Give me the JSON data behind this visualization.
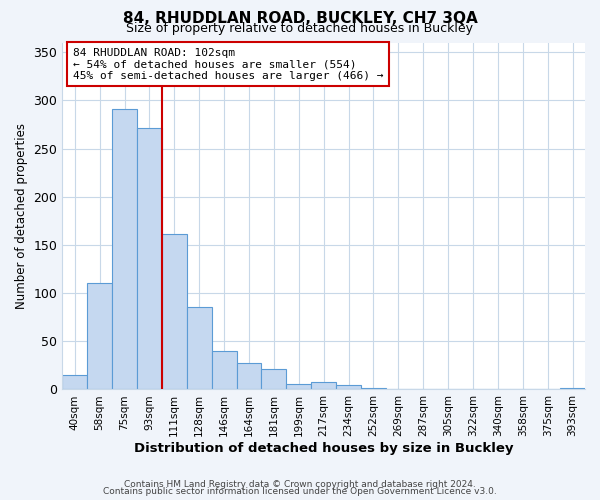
{
  "title": "84, RHUDDLAN ROAD, BUCKLEY, CH7 3QA",
  "subtitle": "Size of property relative to detached houses in Buckley",
  "xlabel": "Distribution of detached houses by size in Buckley",
  "ylabel": "Number of detached properties",
  "bar_labels": [
    "40sqm",
    "58sqm",
    "75sqm",
    "93sqm",
    "111sqm",
    "128sqm",
    "146sqm",
    "164sqm",
    "181sqm",
    "199sqm",
    "217sqm",
    "234sqm",
    "252sqm",
    "269sqm",
    "287sqm",
    "305sqm",
    "322sqm",
    "340sqm",
    "358sqm",
    "375sqm",
    "393sqm"
  ],
  "bar_values": [
    15,
    110,
    291,
    271,
    161,
    86,
    40,
    27,
    21,
    6,
    8,
    5,
    2,
    0,
    0,
    0,
    0,
    0,
    0,
    0,
    2
  ],
  "bar_color": "#c5d8f0",
  "bar_edge_color": "#5b9bd5",
  "ylim": [
    0,
    360
  ],
  "yticks": [
    0,
    50,
    100,
    150,
    200,
    250,
    300,
    350
  ],
  "annotation_title": "84 RHUDDLAN ROAD: 102sqm",
  "annotation_line1": "← 54% of detached houses are smaller (554)",
  "annotation_line2": "45% of semi-detached houses are larger (466) →",
  "ref_line_color": "#cc0000",
  "annotation_box_color": "#ffffff",
  "annotation_box_edge_color": "#cc0000",
  "grid_color": "#c8d8e8",
  "plot_bg_color": "#ffffff",
  "fig_bg_color": "#f0f4fa",
  "footer_line1": "Contains HM Land Registry data © Crown copyright and database right 2024.",
  "footer_line2": "Contains public sector information licensed under the Open Government Licence v3.0."
}
